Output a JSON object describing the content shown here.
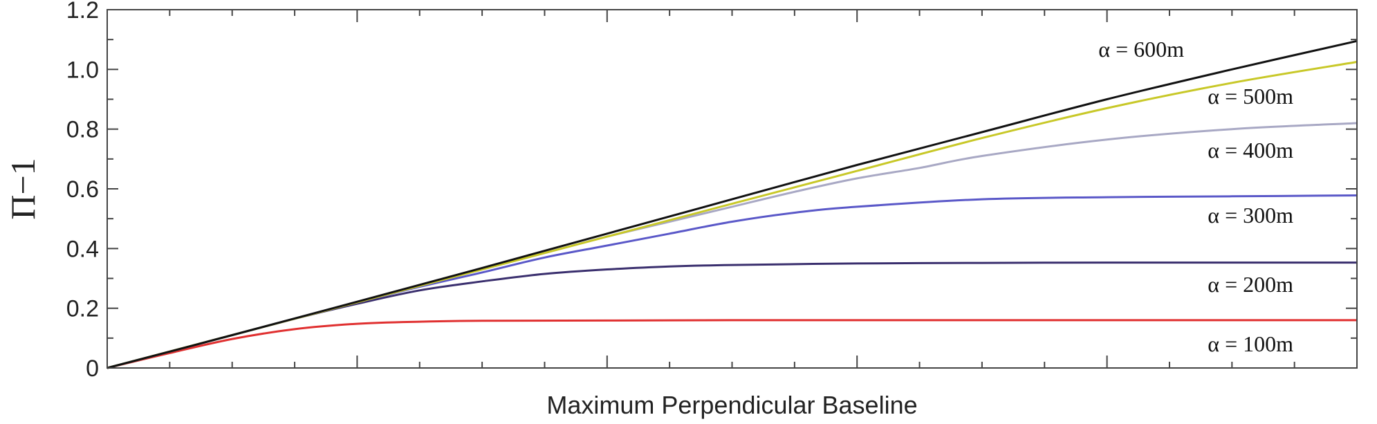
{
  "chart_data": {
    "type": "line",
    "title": "",
    "xlabel": "Maximum Perpendicular Baseline",
    "ylabel": "Π−1",
    "xlim": [
      0,
      1
    ],
    "ylim": [
      0,
      1.2
    ],
    "yticks": [
      0,
      0.2,
      0.4,
      0.6,
      0.8,
      1.0,
      1.2
    ],
    "ytick_labels": [
      "0",
      "0.2",
      "0.4",
      "0.6",
      "0.8",
      "1.0",
      "1.2"
    ],
    "grid": false,
    "series": [
      {
        "name": "α = 100m",
        "color": "#e03030",
        "x": [
          0,
          0.05,
          0.1,
          0.15,
          0.2,
          0.25,
          0.3,
          0.4,
          0.5,
          0.6,
          0.7,
          0.8,
          0.9,
          1.0
        ],
        "y": [
          0,
          0.05,
          0.097,
          0.13,
          0.148,
          0.155,
          0.158,
          0.159,
          0.16,
          0.16,
          0.16,
          0.16,
          0.16,
          0.16
        ]
      },
      {
        "name": "α = 200m",
        "color": "#3a2f6e",
        "x": [
          0,
          0.05,
          0.1,
          0.15,
          0.2,
          0.25,
          0.3,
          0.35,
          0.4,
          0.45,
          0.5,
          0.6,
          0.7,
          0.8,
          0.9,
          1.0
        ],
        "y": [
          0,
          0.055,
          0.11,
          0.165,
          0.215,
          0.26,
          0.29,
          0.315,
          0.33,
          0.34,
          0.345,
          0.35,
          0.352,
          0.353,
          0.353,
          0.353
        ]
      },
      {
        "name": "α = 300m",
        "color": "#5a58c8",
        "x": [
          0,
          0.05,
          0.1,
          0.15,
          0.2,
          0.25,
          0.3,
          0.35,
          0.4,
          0.45,
          0.5,
          0.55,
          0.6,
          0.7,
          0.8,
          0.9,
          1.0
        ],
        "y": [
          0,
          0.055,
          0.11,
          0.165,
          0.22,
          0.272,
          0.32,
          0.37,
          0.41,
          0.45,
          0.49,
          0.52,
          0.54,
          0.565,
          0.572,
          0.575,
          0.578
        ]
      },
      {
        "name": "α = 400m",
        "color": "#a8a8c4",
        "x": [
          0,
          0.1,
          0.2,
          0.3,
          0.35,
          0.4,
          0.45,
          0.5,
          0.55,
          0.6,
          0.65,
          0.7,
          0.8,
          0.9,
          1.0
        ],
        "y": [
          0,
          0.11,
          0.22,
          0.33,
          0.385,
          0.44,
          0.49,
          0.54,
          0.59,
          0.635,
          0.67,
          0.71,
          0.765,
          0.8,
          0.82
        ]
      },
      {
        "name": "α = 500m",
        "color": "#c8c828",
        "x": [
          0,
          0.1,
          0.2,
          0.3,
          0.4,
          0.5,
          0.6,
          0.7,
          0.8,
          0.9,
          1.0
        ],
        "y": [
          0,
          0.11,
          0.22,
          0.33,
          0.44,
          0.55,
          0.66,
          0.77,
          0.87,
          0.955,
          1.025
        ]
      },
      {
        "name": "α = 600m",
        "color": "#111111",
        "x": [
          0,
          0.1,
          0.2,
          0.3,
          0.4,
          0.5,
          0.6,
          0.7,
          0.8,
          0.9,
          1.0
        ],
        "y": [
          0,
          0.11,
          0.222,
          0.335,
          0.45,
          0.565,
          0.68,
          0.79,
          0.9,
          1.0,
          1.095
        ]
      }
    ]
  }
}
